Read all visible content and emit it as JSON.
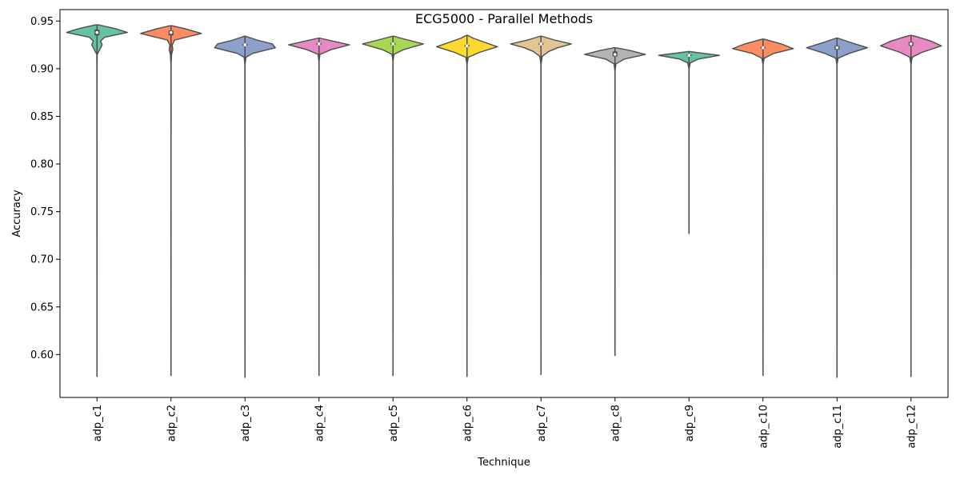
{
  "chart_data": {
    "type": "violin",
    "title": "ECG5000 - Parallel Methods",
    "xlabel": "Technique",
    "ylabel": "Accuracy",
    "ylim": [
      0.555,
      0.962
    ],
    "yticks": [
      0.6,
      0.65,
      0.7,
      0.75,
      0.8,
      0.85,
      0.9,
      0.95
    ],
    "ytick_labels": [
      "0.60",
      "0.65",
      "0.70",
      "0.75",
      "0.80",
      "0.85",
      "0.90",
      "0.95"
    ],
    "grid": false,
    "legend": "none",
    "categories": [
      "adp_c1",
      "adp_c2",
      "adp_c3",
      "adp_c4",
      "adp_c5",
      "adp_c6",
      "adp_c7",
      "adp_c8",
      "adp_c9",
      "adp_c10",
      "adp_c11",
      "adp_c12"
    ],
    "violins": [
      {
        "color": "#66c2a5",
        "min": 0.577,
        "max": 0.946,
        "q1": 0.935,
        "median": 0.938,
        "q3": 0.941,
        "profile": [
          [
            0.577,
            0.002
          ],
          [
            0.9,
            0.004
          ],
          [
            0.915,
            0.008
          ],
          [
            0.92,
            0.09
          ],
          [
            0.925,
            0.17
          ],
          [
            0.929,
            0.12
          ],
          [
            0.933,
            0.25
          ],
          [
            0.938,
            1.0
          ],
          [
            0.942,
            0.6
          ],
          [
            0.946,
            0.05
          ]
        ]
      },
      {
        "color": "#fc8d62",
        "min": 0.578,
        "max": 0.945,
        "q1": 0.935,
        "median": 0.938,
        "q3": 0.94,
        "profile": [
          [
            0.578,
            0.002
          ],
          [
            0.905,
            0.004
          ],
          [
            0.915,
            0.02
          ],
          [
            0.92,
            0.06
          ],
          [
            0.925,
            0.04
          ],
          [
            0.93,
            0.12
          ],
          [
            0.937,
            1.0
          ],
          [
            0.942,
            0.45
          ],
          [
            0.945,
            0.05
          ]
        ]
      },
      {
        "color": "#8da0cb",
        "min": 0.576,
        "max": 0.934,
        "q1": 0.924,
        "median": 0.925,
        "q3": 0.926,
        "profile": [
          [
            0.576,
            0.002
          ],
          [
            0.905,
            0.004
          ],
          [
            0.912,
            0.03
          ],
          [
            0.916,
            0.25
          ],
          [
            0.922,
            1.0
          ],
          [
            0.926,
            0.9
          ],
          [
            0.93,
            0.4
          ],
          [
            0.934,
            0.03
          ]
        ]
      },
      {
        "color": "#e78ac3",
        "min": 0.578,
        "max": 0.932,
        "q1": 0.925,
        "median": 0.926,
        "q3": 0.927,
        "profile": [
          [
            0.578,
            0.002
          ],
          [
            0.908,
            0.004
          ],
          [
            0.915,
            0.03
          ],
          [
            0.92,
            0.4
          ],
          [
            0.925,
            1.0
          ],
          [
            0.929,
            0.45
          ],
          [
            0.932,
            0.03
          ]
        ]
      },
      {
        "color": "#a6d854",
        "min": 0.578,
        "max": 0.934,
        "q1": 0.925,
        "median": 0.926,
        "q3": 0.927,
        "profile": [
          [
            0.578,
            0.002
          ],
          [
            0.908,
            0.004
          ],
          [
            0.915,
            0.03
          ],
          [
            0.92,
            0.35
          ],
          [
            0.926,
            1.0
          ],
          [
            0.93,
            0.5
          ],
          [
            0.934,
            0.03
          ]
        ]
      },
      {
        "color": "#ffd92f",
        "min": 0.577,
        "max": 0.935,
        "q1": 0.923,
        "median": 0.924,
        "q3": 0.925,
        "profile": [
          [
            0.577,
            0.002
          ],
          [
            0.905,
            0.004
          ],
          [
            0.912,
            0.04
          ],
          [
            0.917,
            0.4
          ],
          [
            0.923,
            1.0
          ],
          [
            0.928,
            0.55
          ],
          [
            0.932,
            0.2
          ],
          [
            0.935,
            0.02
          ]
        ]
      },
      {
        "color": "#e5c494",
        "min": 0.579,
        "max": 0.934,
        "q1": 0.925,
        "median": 0.926,
        "q3": 0.927,
        "profile": [
          [
            0.579,
            0.002
          ],
          [
            0.905,
            0.004
          ],
          [
            0.913,
            0.04
          ],
          [
            0.918,
            0.25
          ],
          [
            0.922,
            0.55
          ],
          [
            0.926,
            1.0
          ],
          [
            0.93,
            0.45
          ],
          [
            0.934,
            0.03
          ]
        ]
      },
      {
        "color": "#b3b3b3",
        "min": 0.599,
        "max": 0.922,
        "q1": 0.913,
        "median": 0.915,
        "q3": 0.918,
        "profile": [
          [
            0.599,
            0.002
          ],
          [
            0.898,
            0.004
          ],
          [
            0.905,
            0.03
          ],
          [
            0.91,
            0.3
          ],
          [
            0.915,
            1.0
          ],
          [
            0.919,
            0.5
          ],
          [
            0.922,
            0.03
          ]
        ]
      },
      {
        "color": "#66c2a5",
        "min": 0.727,
        "max": 0.918,
        "q1": 0.913,
        "median": 0.914,
        "q3": 0.915,
        "profile": [
          [
            0.727,
            0.003
          ],
          [
            0.9,
            0.004
          ],
          [
            0.906,
            0.04
          ],
          [
            0.91,
            0.3
          ],
          [
            0.914,
            1.0
          ],
          [
            0.917,
            0.25
          ],
          [
            0.918,
            0.02
          ]
        ]
      },
      {
        "color": "#fc8d62",
        "min": 0.578,
        "max": 0.931,
        "q1": 0.921,
        "median": 0.922,
        "q3": 0.923,
        "profile": [
          [
            0.578,
            0.002
          ],
          [
            0.905,
            0.004
          ],
          [
            0.911,
            0.04
          ],
          [
            0.916,
            0.35
          ],
          [
            0.921,
            1.0
          ],
          [
            0.926,
            0.6
          ],
          [
            0.931,
            0.03
          ]
        ]
      },
      {
        "color": "#8da0cb",
        "min": 0.576,
        "max": 0.932,
        "q1": 0.92,
        "median": 0.922,
        "q3": 0.924,
        "profile": [
          [
            0.576,
            0.002
          ],
          [
            0.905,
            0.004
          ],
          [
            0.911,
            0.04
          ],
          [
            0.916,
            0.4
          ],
          [
            0.922,
            1.0
          ],
          [
            0.928,
            0.4
          ],
          [
            0.932,
            0.03
          ]
        ]
      },
      {
        "color": "#e78ac3",
        "min": 0.577,
        "max": 0.935,
        "q1": 0.924,
        "median": 0.926,
        "q3": 0.928,
        "profile": [
          [
            0.577,
            0.002
          ],
          [
            0.905,
            0.004
          ],
          [
            0.912,
            0.04
          ],
          [
            0.917,
            0.35
          ],
          [
            0.924,
            1.0
          ],
          [
            0.929,
            0.65
          ],
          [
            0.933,
            0.25
          ],
          [
            0.935,
            0.02
          ]
        ]
      }
    ]
  }
}
